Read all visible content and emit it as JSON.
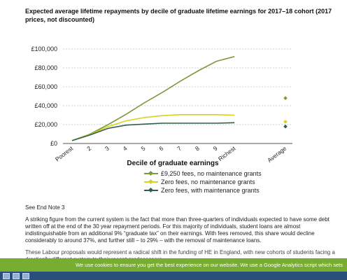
{
  "title": "Expected average lifetime repayments by decile of graduate lifetime earnings for 2017–18 cohort (2017 prices, not discounted)",
  "note": "See End Note 3",
  "paragraph": "A striking figure from the current system is the fact that more than three-quarters of individuals expected to have some debt written off at the end of the 30 year repayment periods. For this majority of individuals, student loans are almost indistinguishable from an additional 9% “graduate tax” on their earnings. With fees removed, this share would decline considerably to around 37%, and further still – to 29% – with the removal of maintenance loans.",
  "paragraph2": "These Labour proposals would represent a radical shift in the funding of HE in England, with new cohorts of students facing a drastically different system to their recent predecessors.",
  "cookie_banner": "We use cookies to ensure you get the best experience on our website. We use a Google Analytics script which sets",
  "chart_data": {
    "type": "line",
    "title": "Expected average lifetime repayments by decile of graduate lifetime earnings for 2017–18 cohort (2017 prices, not discounted)",
    "xlabel": "Decile of graduate earnings",
    "ylabel": "",
    "categories": [
      "Poorest",
      "2",
      "3",
      "4",
      "5",
      "6",
      "7",
      "8",
      "9",
      "Richest"
    ],
    "average_label": "Average",
    "ylim": [
      0,
      100000
    ],
    "yticks": [
      0,
      20000,
      40000,
      60000,
      80000,
      100000
    ],
    "ytick_labels": [
      "£0",
      "£20,000",
      "£40,000",
      "£60,000",
      "£80,000",
      "£100,000"
    ],
    "grid": true,
    "legend_position": "bottom",
    "series": [
      {
        "name": "£9,250 fees, no maintenance grants",
        "color": "#7d9a3c",
        "values": [
          3000,
          10000,
          20000,
          31000,
          43000,
          54000,
          66000,
          77000,
          87000,
          92000
        ],
        "average": 48000
      },
      {
        "name": "Zero fees, no maintenance grants",
        "color": "#d8d21c",
        "values": [
          3000,
          9500,
          18000,
          24000,
          27500,
          29500,
          30500,
          30500,
          30500,
          30000
        ],
        "average": 23000
      },
      {
        "name": "Zero fees, with maintenance grants",
        "color": "#2f5f4e",
        "values": [
          3000,
          9000,
          16000,
          19500,
          20500,
          21500,
          21500,
          21500,
          21500,
          22000
        ],
        "average": 18000
      }
    ]
  }
}
